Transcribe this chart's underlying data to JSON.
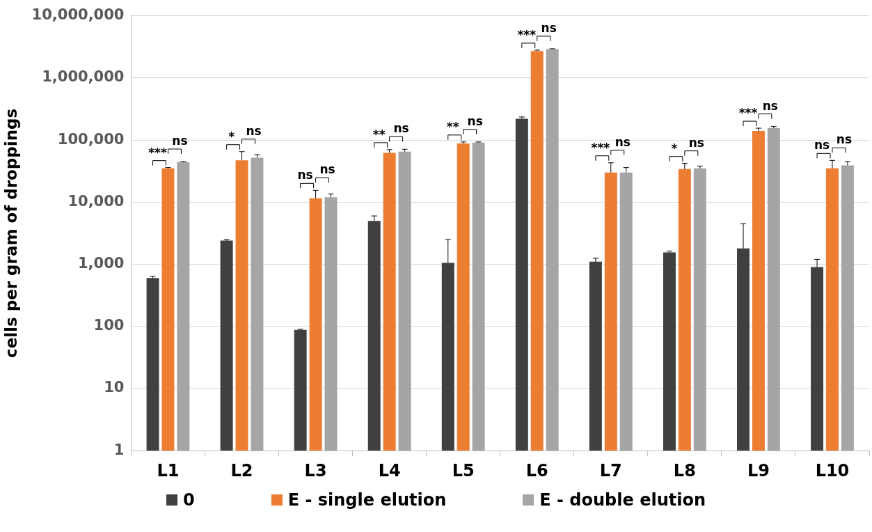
{
  "chart_data": {
    "type": "bar",
    "ylabel": "cells per gram of droppings",
    "categories": [
      "L1",
      "L2",
      "L3",
      "L4",
      "L5",
      "L6",
      "L7",
      "L8",
      "L9",
      "L10"
    ],
    "log": "y",
    "ylim": [
      1,
      10000000
    ],
    "yticks": [
      {
        "value": 1,
        "label": "1"
      },
      {
        "value": 10,
        "label": "10"
      },
      {
        "value": 100,
        "label": "100"
      },
      {
        "value": 1000,
        "label": "1,000"
      },
      {
        "value": 10000,
        "label": "10,000"
      },
      {
        "value": 100000,
        "label": "100,000"
      },
      {
        "value": 1000000,
        "label": "1,000,000"
      },
      {
        "value": 10000000,
        "label": "10,000,000"
      }
    ],
    "grid": "y",
    "legend": "bottom",
    "series": [
      {
        "name": "0",
        "color": "#404040",
        "values": [
          600,
          2400,
          88,
          5000,
          1050,
          220000,
          1100,
          1550,
          1800,
          900
        ],
        "errors": [
          [
            600,
            640
          ],
          [
            2400,
            2500
          ],
          [
            88,
            90
          ],
          [
            5000,
            6000
          ],
          [
            1050,
            2500
          ],
          [
            220000,
            235000
          ],
          [
            1100,
            1250
          ],
          [
            1550,
            1630
          ],
          [
            1800,
            4500
          ],
          [
            900,
            1200
          ]
        ]
      },
      {
        "name": "E - single elution",
        "color": "#ed7d31",
        "values": [
          35000,
          47000,
          11500,
          62000,
          88000,
          2700000,
          30000,
          34000,
          140000,
          35000
        ],
        "errors": [
          [
            35000,
            36000
          ],
          [
            47000,
            65000
          ],
          [
            11500,
            15500
          ],
          [
            62000,
            70000
          ],
          [
            88000,
            93000
          ],
          [
            2700000,
            2800000
          ],
          [
            30000,
            43000
          ],
          [
            34000,
            42000
          ],
          [
            140000,
            155000
          ],
          [
            35000,
            47000
          ]
        ]
      },
      {
        "name": "E - double elution",
        "color": "#a5a5a5",
        "values": [
          44000,
          52000,
          12000,
          65000,
          91000,
          2900000,
          30000,
          35000,
          155000,
          39000
        ],
        "errors": [
          [
            44000,
            45000
          ],
          [
            52000,
            58000
          ],
          [
            12000,
            13500
          ],
          [
            65000,
            71000
          ],
          [
            91000,
            93000
          ],
          [
            2900000,
            2950000
          ],
          [
            30000,
            36000
          ],
          [
            35000,
            38000
          ],
          [
            155000,
            165000
          ],
          [
            39000,
            45000
          ]
        ]
      }
    ],
    "annotations": [
      "***",
      "ns",
      "*",
      "ns",
      "ns",
      "ns",
      "**",
      "ns",
      "**",
      "ns",
      "***",
      "ns",
      "***",
      "ns",
      "*",
      "ns",
      "***",
      "ns",
      "ns",
      "ns"
    ]
  }
}
